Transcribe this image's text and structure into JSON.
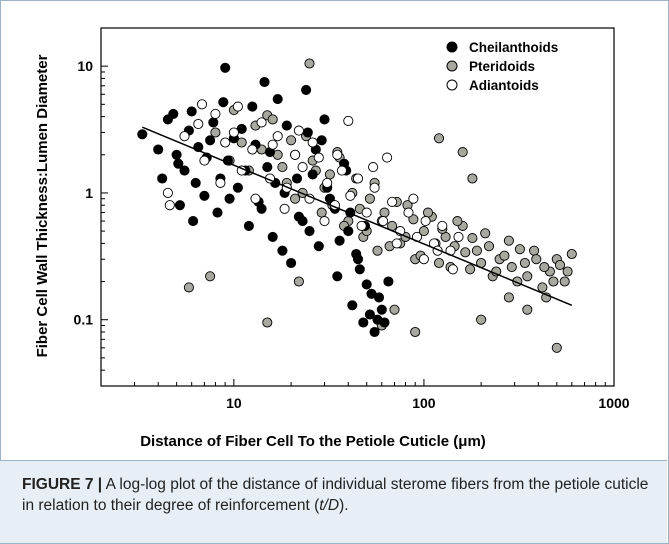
{
  "figure": {
    "caption_label": "FIGURE 7 |",
    "caption_text": " A log-log plot of the distance of individual sterome fibers from the petiole cuticle in relation to their degree of reinforcement (",
    "caption_italic": "t/D",
    "caption_end": ")."
  },
  "colors": {
    "cheilanthoids": "#000000",
    "pteridoids": "#a8a8a0",
    "adiantoids": "#ffffff",
    "marker_edge": "#000000"
  },
  "chart_data": {
    "type": "scatter",
    "title": "",
    "xlabel": "Distance of Fiber Cell To the Petiole Cuticle (μm)",
    "ylabel": "Fiber Cell Wall Thickness:Lumen Diameter",
    "xscale": "log",
    "yscale": "log",
    "xlim": [
      2,
      1000
    ],
    "ylim": [
      0.03,
      20
    ],
    "xticks": [
      10,
      100,
      1000
    ],
    "xtick_labels": [
      "10",
      "100",
      "1000"
    ],
    "yticks": [
      0.1,
      1,
      10
    ],
    "ytick_labels": [
      "0.1",
      "1",
      "10"
    ],
    "grid": false,
    "legend_position": "top-right",
    "series": [
      {
        "name": "Cheilanthoids",
        "marker": "filled-black-circle",
        "x": [
          3.3,
          4.0,
          4.2,
          4.5,
          5.0,
          5.2,
          5.5,
          6.0,
          6.3,
          7.0,
          7.5,
          8.2,
          9.0,
          9.3,
          10.5,
          11.0,
          12.0,
          13.0,
          14.0,
          15.0,
          16.0,
          17.0,
          18.5,
          20.0,
          21.0,
          22.0,
          24.0,
          26.0,
          28.0,
          30.0,
          32.0,
          35.0,
          38.0,
          40.0,
          42.0,
          45.0,
          48.0,
          50.0,
          52.0,
          55.0,
          58.0,
          60.0,
          4.8,
          5.8,
          6.5,
          7.2,
          8.5,
          10.0,
          11.5,
          13.5,
          16.5,
          19.0,
          23.0,
          27.0,
          31.0,
          36.0,
          41.0,
          46.0,
          53.0,
          62.0,
          5.1,
          6.1,
          7.8,
          9.5,
          12.5,
          15.5,
          18.0,
          21.5,
          25.0,
          29.0,
          34.0,
          39.0,
          44.0,
          49.0,
          57.0,
          65.0,
          8.8,
          14.5,
          24.5
        ],
        "y": [
          2.9,
          2.2,
          1.3,
          3.8,
          2.0,
          0.8,
          1.5,
          4.4,
          1.2,
          0.95,
          2.6,
          0.7,
          9.7,
          1.8,
          1.1,
          3.2,
          0.55,
          2.4,
          0.75,
          1.6,
          0.45,
          5.5,
          1.0,
          0.28,
          2.0,
          0.65,
          6.5,
          1.4,
          0.38,
          3.8,
          0.9,
          0.22,
          1.7,
          0.5,
          0.13,
          0.3,
          0.095,
          0.19,
          0.11,
          0.08,
          0.15,
          0.12,
          4.2,
          3.1,
          2.3,
          1.9,
          1.3,
          2.7,
          1.5,
          0.85,
          1.2,
          3.4,
          0.6,
          2.2,
          1.1,
          0.42,
          0.7,
          0.25,
          0.16,
          0.095,
          1.7,
          0.6,
          3.6,
          0.9,
          4.8,
          2.1,
          0.35,
          1.3,
          0.5,
          2.6,
          0.75,
          1.5,
          0.33,
          0.55,
          0.1,
          0.2,
          5.2,
          7.5,
          3.0
        ]
      },
      {
        "name": "Pteridoids",
        "marker": "filled-gray-circle",
        "x": [
          5.8,
          7.5,
          9.5,
          11.0,
          13.0,
          15.0,
          17.0,
          19.0,
          21.0,
          24.0,
          27.0,
          30.0,
          33.0,
          36.0,
          40.0,
          44.0,
          48.0,
          52.0,
          57.0,
          62.0,
          68.0,
          75.0,
          82.0,
          90.0,
          100.0,
          110.0,
          120.0,
          130.0,
          145.0,
          160.0,
          175.0,
          190.0,
          210.0,
          230.0,
          250.0,
          280.0,
          310.0,
          340.0,
          380.0,
          420.0,
          460.0,
          500.0,
          550.0,
          600.0,
          8.0,
          10.0,
          12.0,
          14.0,
          16.0,
          18.0,
          20.0,
          23.0,
          26.0,
          29.0,
          32.0,
          35.0,
          38.0,
          42.0,
          46.0,
          50.0,
          55.0,
          60.0,
          66.0,
          72.0,
          80.0,
          88.0,
          96.0,
          105.0,
          115.0,
          125.0,
          138.0,
          150.0,
          165.0,
          180.0,
          200.0,
          220.0,
          240.0,
          265.0,
          290.0,
          320.0,
          350.0,
          390.0,
          430.0,
          480.0,
          520.0,
          570.0,
          25.0,
          120.0,
          160.0,
          180.0,
          500.0,
          440.0,
          70.0,
          60.0,
          90.0,
          200.0,
          15.0,
          22.0,
          350.0,
          280.0
        ],
        "y": [
          0.18,
          0.22,
          1.8,
          2.5,
          3.4,
          4.1,
          2.0,
          1.2,
          0.9,
          2.8,
          1.5,
          1.1,
          0.8,
          1.9,
          0.6,
          1.3,
          0.45,
          0.9,
          0.35,
          0.7,
          0.55,
          0.4,
          0.8,
          0.3,
          0.5,
          0.65,
          0.28,
          0.45,
          0.38,
          0.55,
          0.25,
          0.35,
          0.48,
          0.22,
          0.3,
          0.42,
          0.2,
          0.28,
          0.35,
          0.18,
          0.24,
          0.3,
          0.2,
          0.33,
          3.0,
          4.5,
          1.5,
          2.2,
          3.8,
          1.6,
          2.6,
          1.0,
          1.8,
          0.7,
          1.4,
          2.1,
          0.55,
          1.0,
          0.75,
          0.5,
          1.2,
          0.6,
          0.38,
          0.85,
          0.45,
          0.62,
          0.32,
          0.7,
          0.4,
          0.52,
          0.26,
          0.6,
          0.34,
          0.44,
          0.28,
          0.38,
          0.24,
          0.32,
          0.26,
          0.36,
          0.22,
          0.3,
          0.26,
          0.2,
          0.27,
          0.24,
          10.5,
          2.7,
          2.1,
          1.3,
          0.06,
          0.15,
          0.12,
          0.09,
          0.08,
          0.1,
          0.095,
          0.2,
          0.12,
          0.15
        ]
      },
      {
        "name": "Adiantoids",
        "marker": "open-white-circle",
        "x": [
          4.5,
          4.6,
          5.5,
          6.5,
          7.0,
          8.0,
          9.0,
          10.0,
          11.0,
          12.5,
          14.0,
          15.5,
          17.0,
          19.0,
          21.0,
          23.0,
          25.0,
          28.0,
          31.0,
          34.0,
          37.0,
          41.0,
          45.0,
          50.0,
          55.0,
          61.0,
          68.0,
          75.0,
          83.0,
          92.0,
          102.0,
          113.0,
          125.0,
          138.0,
          152.0,
          6.8,
          8.5,
          10.5,
          13.0,
          16.0,
          18.5,
          22.0,
          26.0,
          30.0,
          35.0,
          40.0,
          47.0,
          54.0,
          64.0,
          72.0,
          88.0,
          100.0,
          118.0,
          142.0
        ],
        "y": [
          1.0,
          0.8,
          2.8,
          3.5,
          1.8,
          4.2,
          2.5,
          3.0,
          1.5,
          2.2,
          3.6,
          1.3,
          2.8,
          1.1,
          2.0,
          1.6,
          0.9,
          1.9,
          1.2,
          0.8,
          1.5,
          0.95,
          1.3,
          0.7,
          1.1,
          0.6,
          0.85,
          0.5,
          0.7,
          0.45,
          0.6,
          0.4,
          0.55,
          0.35,
          0.45,
          5.0,
          1.2,
          4.8,
          0.9,
          2.4,
          0.75,
          3.1,
          2.5,
          0.6,
          2.0,
          3.7,
          0.55,
          1.6,
          1.9,
          0.4,
          0.9,
          0.3,
          0.35,
          0.25
        ]
      }
    ],
    "trend_line": {
      "type": "regression",
      "x": [
        3.3,
        600
      ],
      "y": [
        3.3,
        0.13
      ]
    }
  }
}
